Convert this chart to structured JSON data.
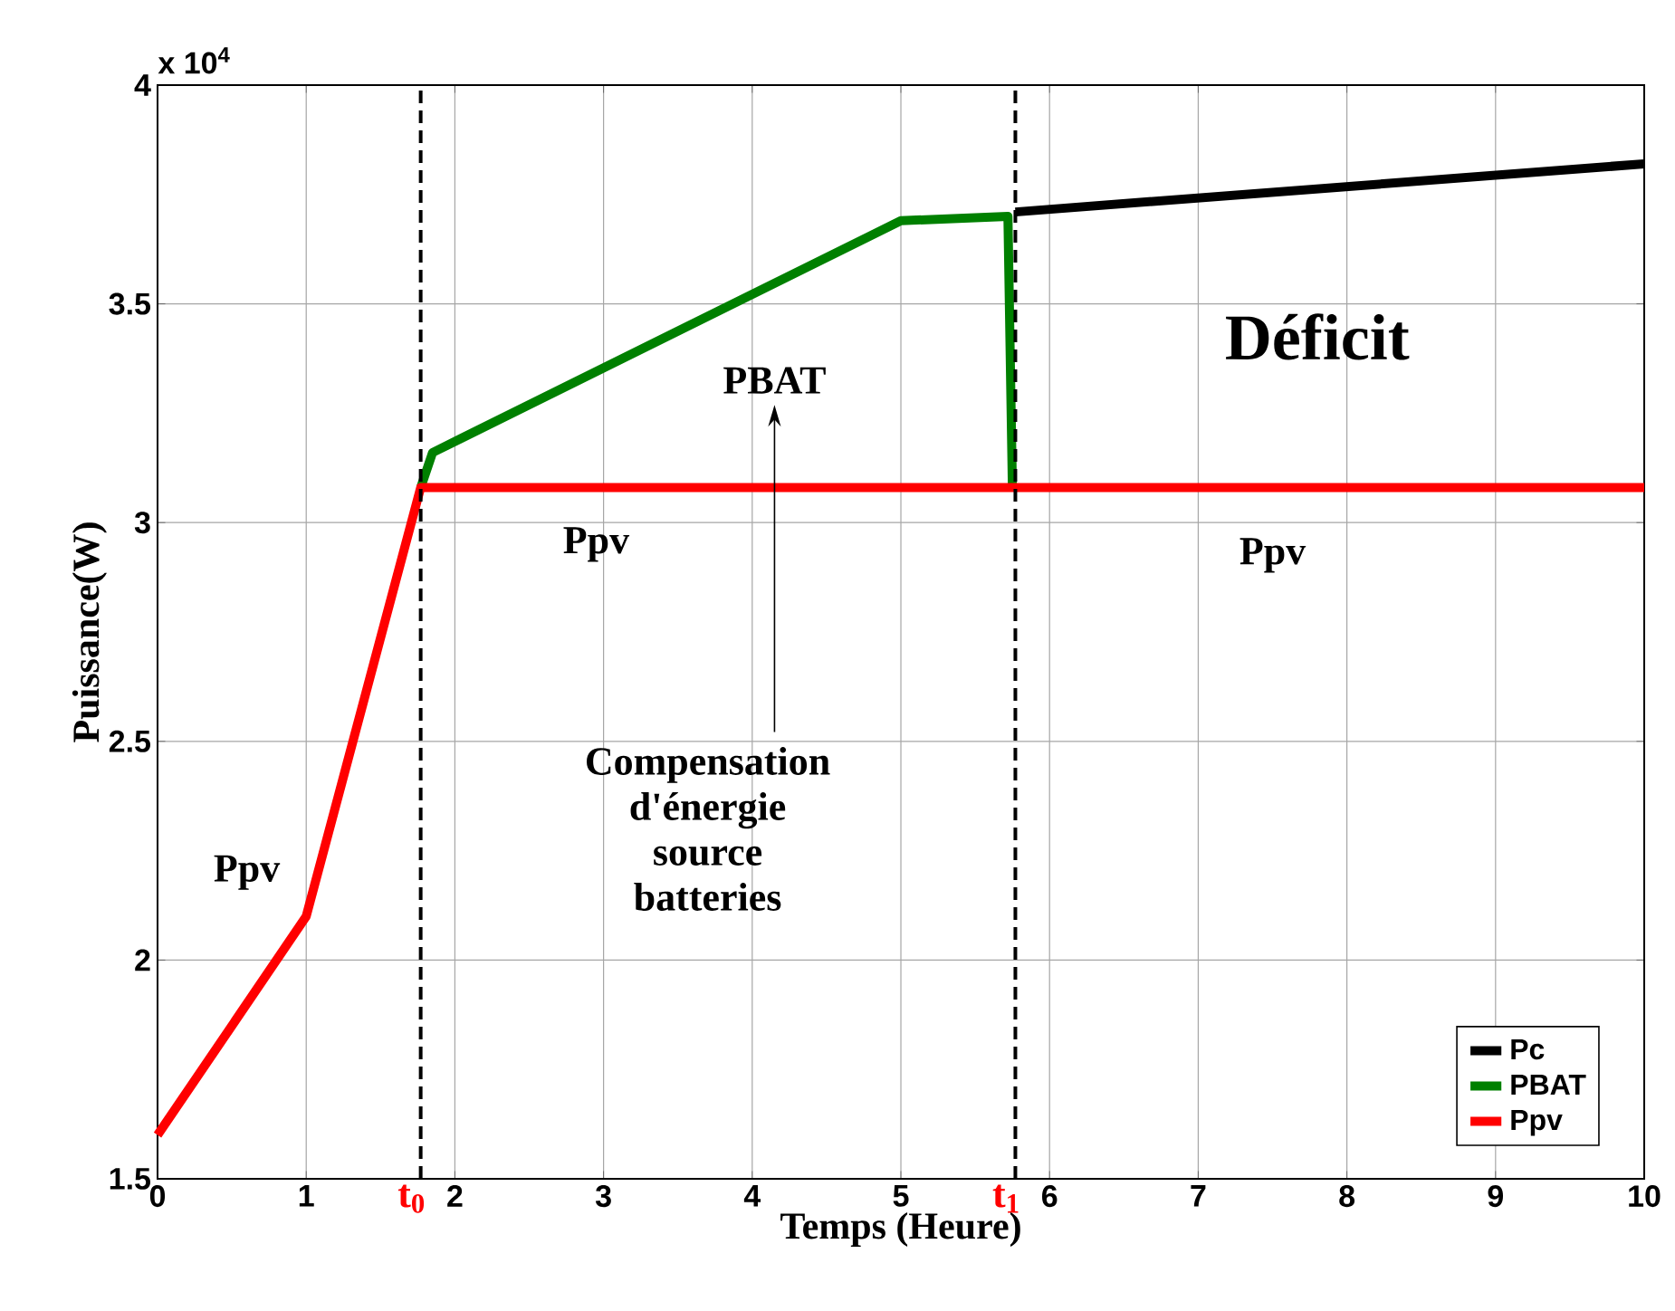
{
  "chart_data": {
    "type": "line",
    "xlabel": "Temps (Heure)",
    "ylabel": "Puissance(W)",
    "xlim": [
      0,
      10
    ],
    "xticks": [
      0,
      1,
      2,
      3,
      4,
      5,
      6,
      7,
      8,
      9,
      10
    ],
    "ylim": [
      1.5,
      4
    ],
    "yticks": [
      1.5,
      2,
      2.5,
      3,
      3.5,
      4
    ],
    "grid": true,
    "legend": "bottom right",
    "marker": "none",
    "line_style": "solid",
    "series": [
      {
        "name": "Pc",
        "color": "#000000",
        "x": [
          5.77,
          10
        ],
        "values": [
          3.71,
          3.82
        ]
      },
      {
        "name": "PBAT",
        "color": "#008000",
        "x": [
          1.77,
          1.85,
          5.0,
          5.72,
          5.75
        ],
        "values": [
          3.08,
          3.16,
          3.69,
          3.7,
          3.08
        ]
      },
      {
        "name": "Ppv",
        "color": "#ff0000",
        "x": [
          0,
          1,
          1.77,
          10
        ],
        "values": [
          1.6,
          2.1,
          3.08,
          3.08
        ]
      }
    ],
    "ref_lines": [
      {
        "axis": "x",
        "value": 1.77,
        "label": "t$_{0}$",
        "color": "#000000",
        "line_style": "dashed"
      },
      {
        "axis": "x",
        "value": 5.77,
        "label": "t$_{1}$",
        "color": "#000000",
        "line_style": "dashed"
      }
    ],
    "annotations": [
      "x 10$^{4}$",
      "Ppv",
      "Ppv",
      "Ppv",
      "PBAT",
      "Déficit",
      "Compensation d'énergie source batteries"
    ]
  }
}
